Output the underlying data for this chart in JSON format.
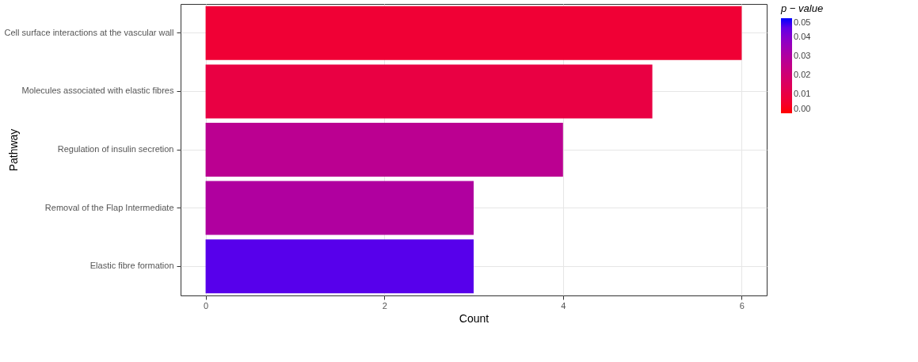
{
  "chart_data": {
    "type": "bar",
    "orientation": "horizontal",
    "xlabel": "Count",
    "ylabel": "Pathway",
    "legend_title": "p − value",
    "categories": [
      "Cell surface interactions at the vascular wall",
      "Molecules associated with elastic fibres",
      "Regulation of insulin secretion",
      "Removal of the Flap Intermediate",
      "Elastic fibre formation"
    ],
    "values": [
      6,
      5,
      4,
      3,
      3
    ],
    "cvalues": [
      0.007,
      0.01,
      0.027,
      0.03,
      0.046
    ],
    "clim": [
      0,
      0.05
    ],
    "cticks": [
      {
        "value": 0,
        "label": "0.00"
      },
      0.01,
      0.02,
      0.03,
      0.04,
      0.05
    ],
    "xlim": [
      -0.28,
      6.28
    ],
    "xticks": [
      0,
      2,
      4,
      6
    ],
    "grid": true
  }
}
